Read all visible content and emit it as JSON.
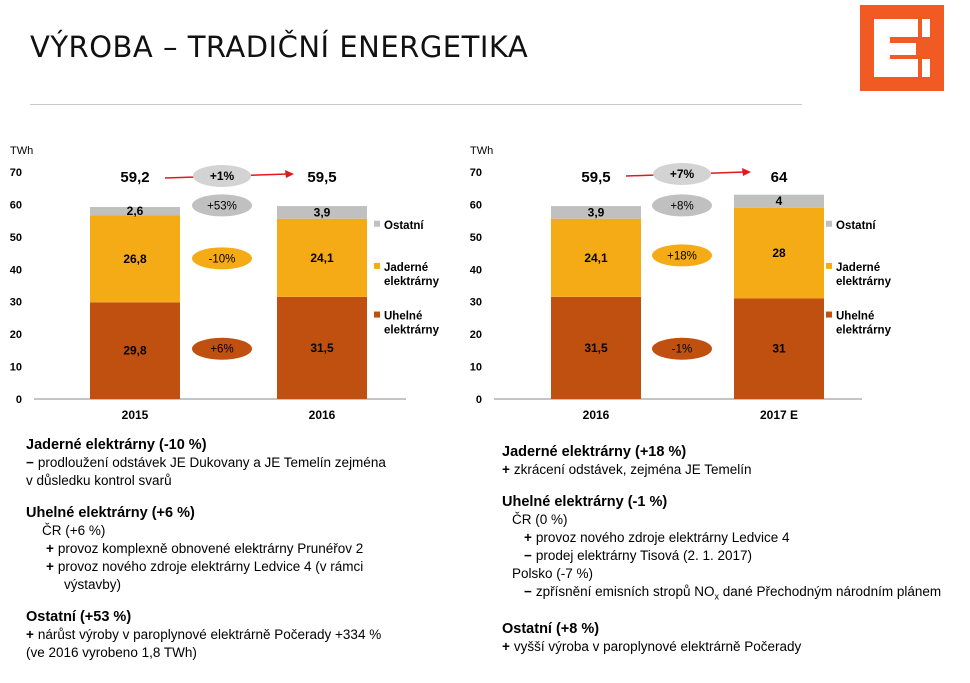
{
  "header": {
    "title": "VÝROBA – TRADIČNÍ ENERGETIKA",
    "brand_color": "#f15a22"
  },
  "colors": {
    "uhelne": "#c0500f",
    "jaderne": "#f5ab16",
    "ostatni": "#c0c0c0",
    "growth_pill": "#d3d3d3",
    "arrow": "#e0191e"
  },
  "chart_data": [
    {
      "type": "bar",
      "stacked": true,
      "unit_label": "TWh",
      "ylim": [
        0,
        70
      ],
      "yticks": [
        0,
        10,
        20,
        30,
        40,
        50,
        60,
        70
      ],
      "categories": [
        "2015",
        "2016"
      ],
      "series": [
        {
          "name": "Uhelné elektrárny",
          "values": [
            29.8,
            31.5
          ],
          "labels": [
            "29,8",
            "31,5"
          ],
          "change": "+6%"
        },
        {
          "name": "Jaderné elektrárny",
          "values": [
            26.8,
            24.1
          ],
          "labels": [
            "26,8",
            "24,1"
          ],
          "change": "-10%"
        },
        {
          "name": "Ostatní",
          "values": [
            2.6,
            3.9
          ],
          "labels": [
            "2,6",
            "3,9"
          ],
          "change": "+53%"
        }
      ],
      "totals": [
        "59,2",
        "59,5"
      ],
      "total_change": "+1%",
      "legend_position": "right"
    },
    {
      "type": "bar",
      "stacked": true,
      "unit_label": "TWh",
      "ylim": [
        0,
        70
      ],
      "yticks": [
        0,
        10,
        20,
        30,
        40,
        50,
        60,
        70
      ],
      "categories": [
        "2016",
        "2017 E"
      ],
      "series": [
        {
          "name": "Uhelné elektrárny",
          "values": [
            31.5,
            31
          ],
          "labels": [
            "31,5",
            "31"
          ],
          "change": "-1%"
        },
        {
          "name": "Jaderné elektrárny",
          "values": [
            24.1,
            28
          ],
          "labels": [
            "24,1",
            "28"
          ],
          "change": "+18%"
        },
        {
          "name": "Ostatní",
          "values": [
            3.9,
            4
          ],
          "labels": [
            "3,9",
            "4"
          ],
          "change": "+8%"
        }
      ],
      "totals": [
        "59,5",
        "64"
      ],
      "total_change": "+7%",
      "legend_position": "right"
    }
  ],
  "legend_lines": {
    "ostatni": [
      "Ostatní"
    ],
    "jaderne": [
      "Jaderné",
      "elektrárny"
    ],
    "uhelne": [
      "Uhelné",
      "elektrárny"
    ]
  },
  "notes_left": {
    "jaderne": {
      "heading": "Jaderné elektrárny (-10 %)",
      "lines": [
        {
          "sign": "−",
          "text": "prodloužení odstávek JE Dukovany a JE Temelín zejména"
        },
        {
          "sign": "",
          "text": "v důsledku kontrol svarů"
        }
      ]
    },
    "uhelne": {
      "heading": "Uhelné elektrárny (+6 %)",
      "sub": "ČR (+6 %)",
      "lines": [
        {
          "sign": "+",
          "text": "provoz komplexně obnovené elektrárny Prunéřov 2"
        },
        {
          "sign": "+",
          "text": "provoz nového zdroje elektrárny Ledvice 4 (v rámci"
        },
        {
          "sign": "",
          "text": "výstavby)"
        }
      ]
    },
    "ostatni": {
      "heading": "Ostatní (+53 %)",
      "lines": [
        {
          "sign": "+",
          "text": "nárůst výroby v paroplynové elektrárně Počerady +334 %"
        },
        {
          "sign": "",
          "text": "(ve 2016 vyrobeno 1,8 TWh)"
        }
      ]
    }
  },
  "notes_right": {
    "jaderne": {
      "heading": "Jaderné elektrárny (+18 %)",
      "lines": [
        {
          "sign": "+",
          "text": "zkrácení odstávek, zejména JE Temelín"
        }
      ]
    },
    "uhelne": {
      "heading": "Uhelné elektrárny (-1 %)",
      "sub_cr": "ČR (0 %)",
      "cr_lines": [
        {
          "sign": "+",
          "text": "provoz nového zdroje elektrárny Ledvice 4"
        },
        {
          "sign": "−",
          "text": "prodej elektrárny Tisová (2. 1. 2017)"
        }
      ],
      "sub_pl": "Polsko (-7 %)",
      "pl_lines": [
        {
          "sign": "−",
          "text": "zpřísnění emisních stropů NO",
          "sub": "x",
          "tail": " dané Přechodným národním plánem"
        }
      ]
    },
    "ostatni": {
      "heading": "Ostatní (+8 %)",
      "lines": [
        {
          "sign": "+",
          "text": "vyšší výroba v paroplynové elektrárně Počerady"
        }
      ]
    }
  }
}
